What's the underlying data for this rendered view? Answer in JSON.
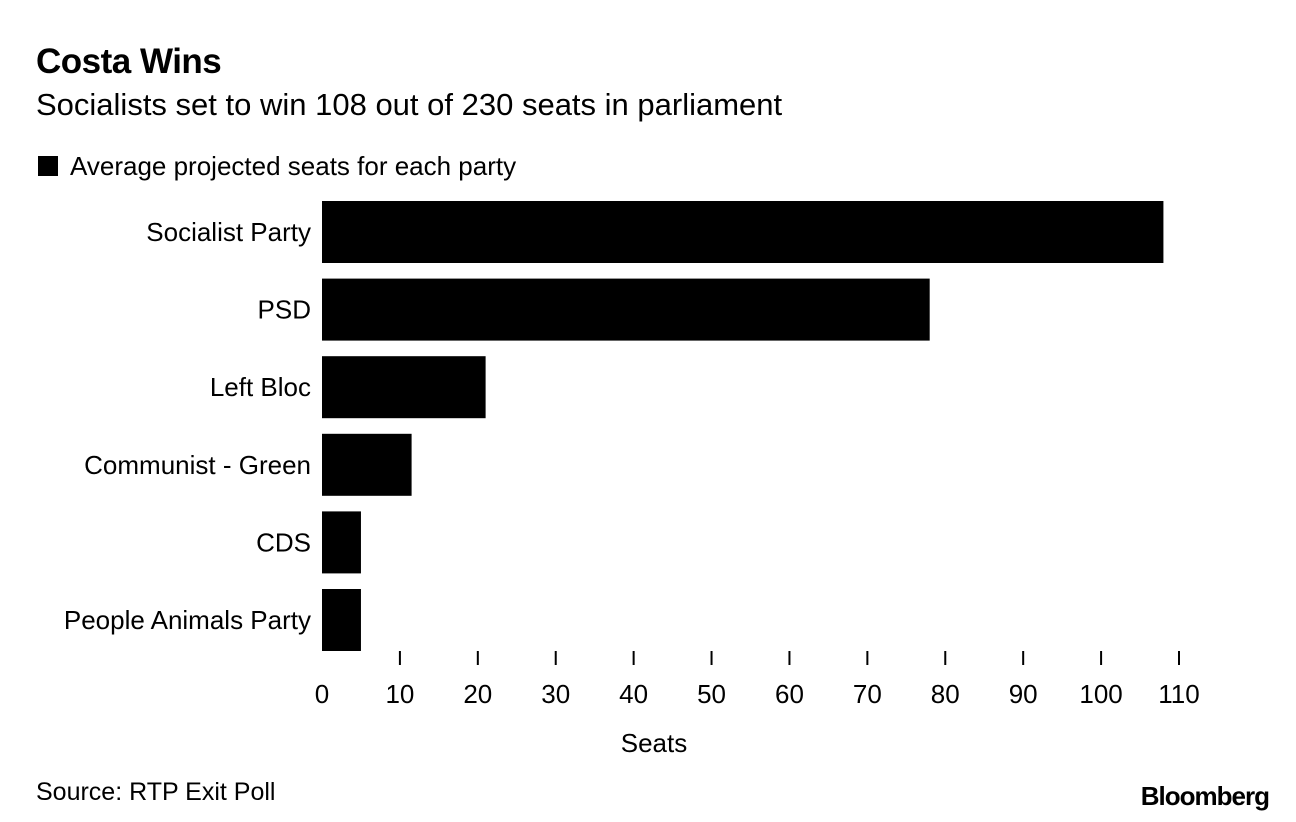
{
  "chart_data": {
    "type": "bar",
    "orientation": "horizontal",
    "title": "Costa Wins",
    "subtitle": "Socialists set to win 108 out of 230 seats in parliament",
    "legend": [
      "Average projected seats for each party"
    ],
    "categories": [
      "Socialist Party",
      "PSD",
      "Left Bloc",
      "Communist - Green",
      "CDS",
      "People Animals Party"
    ],
    "values": [
      108,
      78,
      21,
      11.5,
      5,
      5
    ],
    "xlabel": "Seats",
    "ylabel": "",
    "xlim": [
      0,
      110
    ],
    "xticks": [
      0,
      10,
      20,
      30,
      40,
      50,
      60,
      70,
      80,
      90,
      100,
      110
    ],
    "xtick_labels": [
      "0",
      "10",
      "20",
      "30",
      "40",
      "50",
      "60",
      "70",
      "80",
      "90",
      "100",
      "110"
    ],
    "grid": false,
    "bar_color": "#000000"
  },
  "source": "Source: RTP Exit Poll",
  "brand": "Bloomberg"
}
